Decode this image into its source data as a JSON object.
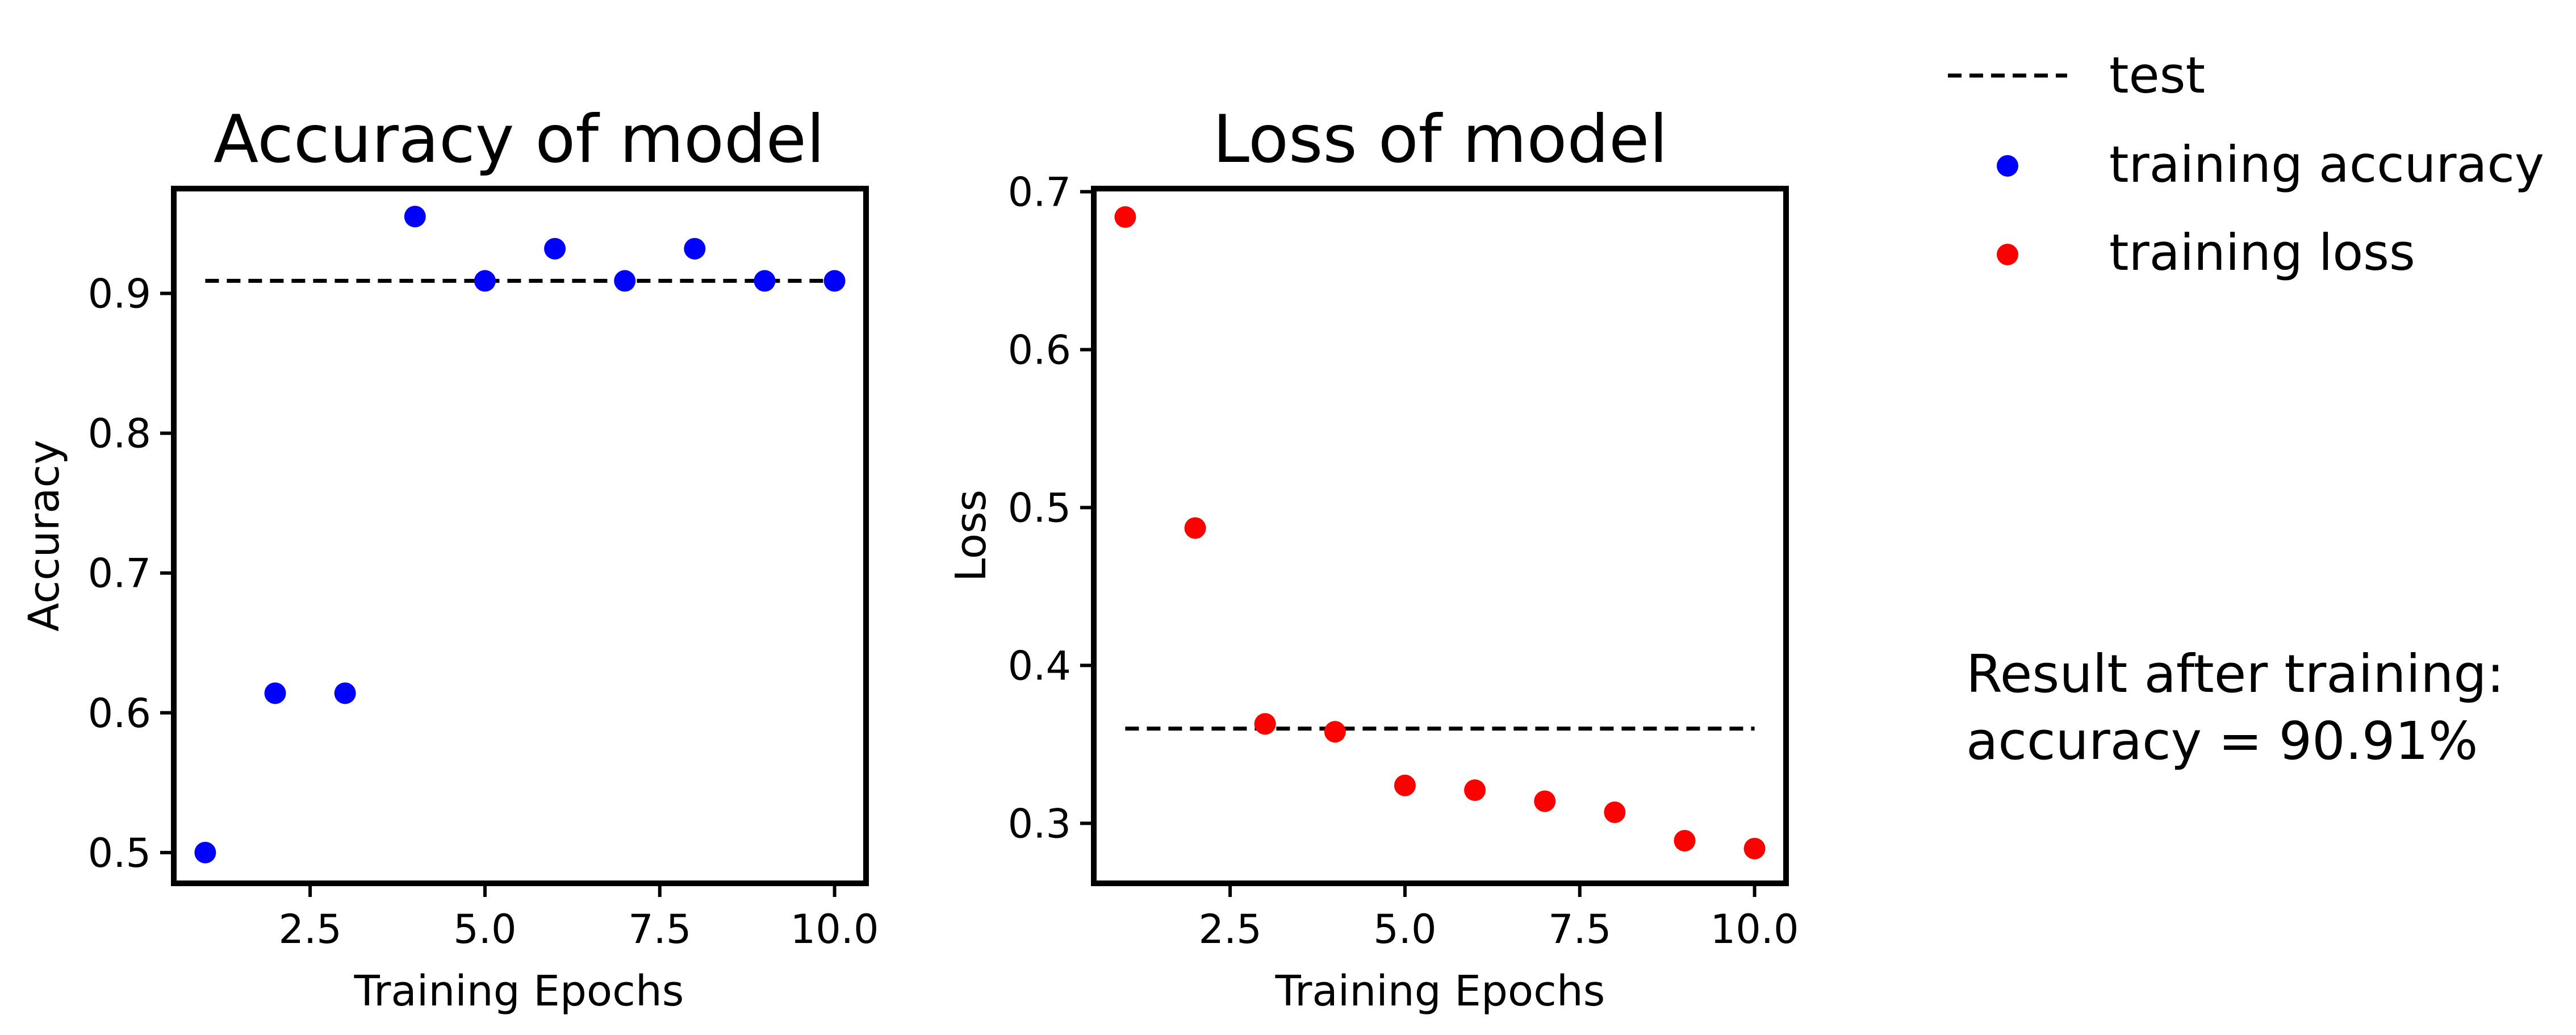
{
  "chart_data": [
    {
      "type": "scatter",
      "title": "Accuracy of model",
      "xlabel": "Training Epochs",
      "ylabel": "Accuracy",
      "xlim": [
        0.55,
        10.45
      ],
      "ylim": [
        0.478,
        0.975
      ],
      "x_ticks": [
        "2.5",
        "5.0",
        "7.5",
        "10.0"
      ],
      "x_tick_values": [
        2.5,
        5.0,
        7.5,
        10.0
      ],
      "y_ticks": [
        "0.5",
        "0.6",
        "0.7",
        "0.8",
        "0.9"
      ],
      "y_tick_values": [
        0.5,
        0.6,
        0.7,
        0.8,
        0.9
      ],
      "grid": false,
      "series": [
        {
          "name": "training accuracy",
          "color": "#0000ff",
          "x": [
            1,
            2,
            3,
            4,
            5,
            6,
            7,
            8,
            9,
            10
          ],
          "y": [
            0.5,
            0.614,
            0.614,
            0.955,
            0.909,
            0.932,
            0.909,
            0.932,
            0.909,
            0.909
          ]
        }
      ],
      "reference_line": {
        "name": "test",
        "style": "dashed",
        "color": "#000000",
        "x": [
          1,
          10
        ],
        "y": 0.909
      }
    },
    {
      "type": "scatter",
      "title": "Loss of model",
      "xlabel": "Training Epochs",
      "ylabel": "Loss",
      "xlim": [
        0.55,
        10.45
      ],
      "ylim": [
        0.262,
        0.702
      ],
      "x_ticks": [
        "2.5",
        "5.0",
        "7.5",
        "10.0"
      ],
      "x_tick_values": [
        2.5,
        5.0,
        7.5,
        10.0
      ],
      "y_ticks": [
        "0.3",
        "0.4",
        "0.5",
        "0.6",
        "0.7"
      ],
      "y_tick_values": [
        0.3,
        0.4,
        0.5,
        0.6,
        0.7
      ],
      "grid": false,
      "series": [
        {
          "name": "training loss",
          "color": "#ff0000",
          "x": [
            1,
            2,
            3,
            4,
            5,
            6,
            7,
            8,
            9,
            10
          ],
          "y": [
            0.684,
            0.487,
            0.363,
            0.358,
            0.324,
            0.321,
            0.314,
            0.307,
            0.289,
            0.284
          ]
        }
      ],
      "reference_line": {
        "name": "test",
        "style": "dashed",
        "color": "#000000",
        "x": [
          1,
          10
        ],
        "y": 0.36
      }
    }
  ],
  "legend": {
    "placement": "top-right",
    "entries": [
      {
        "label": "test",
        "marker": "dashed-line",
        "color": "#000000"
      },
      {
        "label": "training accuracy",
        "marker": "dot",
        "color": "#0000ff"
      },
      {
        "label": "training loss",
        "marker": "dot",
        "color": "#ff0000"
      }
    ]
  },
  "result": {
    "line1": "Result after training:",
    "line2": "accuracy = 90.91%"
  }
}
